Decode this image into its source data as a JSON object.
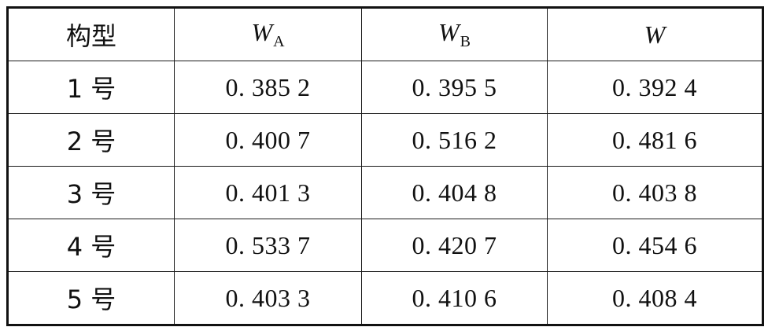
{
  "table": {
    "header": {
      "col0": "构型",
      "col1_symbol": "W",
      "col1_sub": "A",
      "col2_symbol": "W",
      "col2_sub": "B",
      "col3_symbol": "W"
    },
    "rows": [
      {
        "type": "1 号",
        "wa": "0. 385 2",
        "wb": "0. 395 5",
        "w": "0. 392 4"
      },
      {
        "type": "2 号",
        "wa": "0. 400 7",
        "wb": "0. 516 2",
        "w": "0. 481 6"
      },
      {
        "type": "3 号",
        "wa": "0. 401 3",
        "wb": "0. 404 8",
        "w": "0. 403 8"
      },
      {
        "type": "4 号",
        "wa": "0. 533 7",
        "wb": "0. 420 7",
        "w": "0. 454 6"
      },
      {
        "type": "5 号",
        "wa": "0. 403 3",
        "wb": "0. 410 6",
        "w": "0. 408 4"
      }
    ]
  }
}
